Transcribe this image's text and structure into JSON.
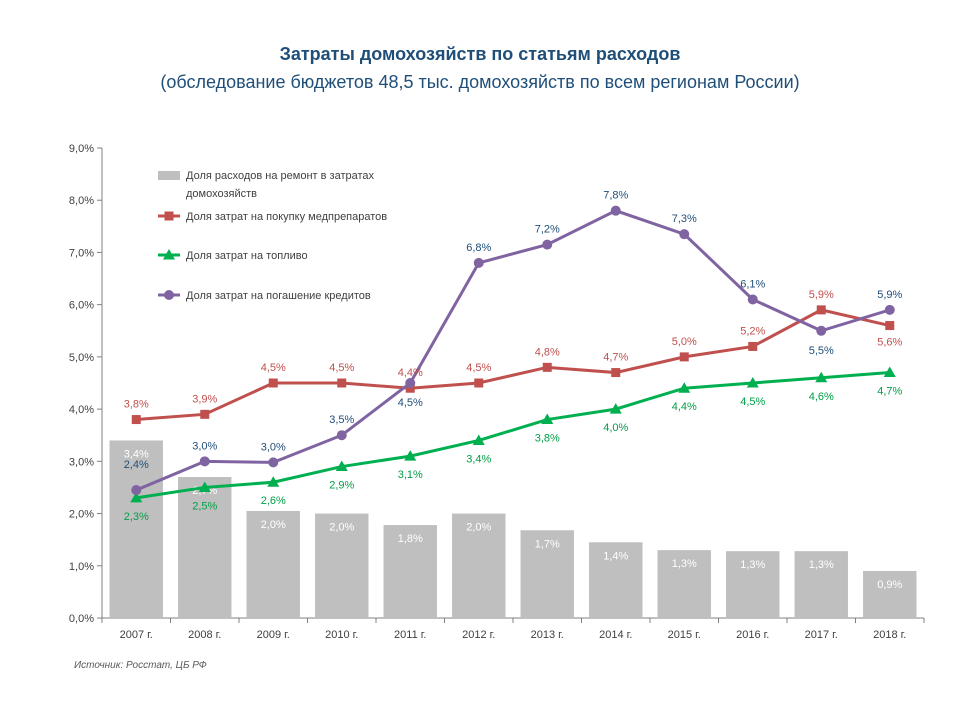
{
  "title": "Затраты домохозяйств по статьям расходов",
  "subtitle": "(обследование  бюджетов 48,5 тыс. домохозяйств по всем регионам России)",
  "source": "Источник: Росстат, ЦБ РФ",
  "chart_data": {
    "type": "bar+line",
    "categories": [
      "2007 г.",
      "2008 г.",
      "2009 г.",
      "2010 г.",
      "2011 г.",
      "2012 г.",
      "2013 г.",
      "2014 г.",
      "2015 г.",
      "2016 г.",
      "2017 г.",
      "2018 г."
    ],
    "ylim": [
      0,
      9
    ],
    "yticks": [
      0,
      1,
      2,
      3,
      4,
      5,
      6,
      7,
      8,
      9
    ],
    "ytick_labels": [
      "0,0%",
      "1,0%",
      "2,0%",
      "3,0%",
      "4,0%",
      "5,0%",
      "6,0%",
      "7,0%",
      "8,0%",
      "9,0%"
    ],
    "legend_position": "top-left",
    "series": [
      {
        "name": "Доля расходов на ремонт в затратах домохозяйств",
        "kind": "bar",
        "color": "#bfbfbf",
        "label_color": "#ffffff",
        "values": [
          3.4,
          2.7,
          2.05,
          2.0,
          1.78,
          2.0,
          1.68,
          1.45,
          1.3,
          1.28,
          1.28,
          0.9
        ],
        "labels": [
          "3,4%",
          "2,7%",
          "2,0%",
          "2,0%",
          "1,8%",
          "2,0%",
          "1,7%",
          "1,4%",
          "1,3%",
          "1,3%",
          "1,3%",
          "0,9%"
        ]
      },
      {
        "name": "Доля затрат на покупку медпрепаратов",
        "kind": "line",
        "marker": "square",
        "color": "#c0504d",
        "label_color": "#c0504d",
        "values": [
          3.8,
          3.9,
          4.5,
          4.5,
          4.4,
          4.5,
          4.8,
          4.7,
          5.0,
          5.2,
          5.9,
          5.6
        ],
        "labels": [
          "3,8%",
          "3,9%",
          "4,5%",
          "4,5%",
          "4,4%",
          "4,5%",
          "4,8%",
          "4,7%",
          "5,0%",
          "5,2%",
          "5,9%",
          "5,6%"
        ]
      },
      {
        "name": "Доля затрат на топливо",
        "kind": "line",
        "marker": "triangle",
        "color": "#00b050",
        "label_color": "#00a046",
        "values": [
          2.3,
          2.5,
          2.6,
          2.9,
          3.1,
          3.4,
          3.8,
          4.0,
          4.4,
          4.5,
          4.6,
          4.7
        ],
        "labels": [
          "2,3%",
          "2,5%",
          "2,6%",
          "2,9%",
          "3,1%",
          "3,4%",
          "3,8%",
          "4,0%",
          "4,4%",
          "4,5%",
          "4,6%",
          "4,7%"
        ]
      },
      {
        "name": "Доля затрат на погашение кредитов",
        "kind": "line",
        "marker": "circle",
        "color": "#8064a2",
        "label_color": "#1f4e79",
        "values": [
          2.45,
          3.0,
          2.98,
          3.5,
          4.5,
          6.8,
          7.15,
          7.8,
          7.35,
          6.1,
          5.5,
          5.9
        ],
        "labels": [
          "2,4%",
          "3,0%",
          "3,0%",
          "3,5%",
          "4,5%",
          "6,8%",
          "7,2%",
          "7,8%",
          "7,3%",
          "6,1%",
          "5,5%",
          "5,9%"
        ]
      }
    ]
  }
}
